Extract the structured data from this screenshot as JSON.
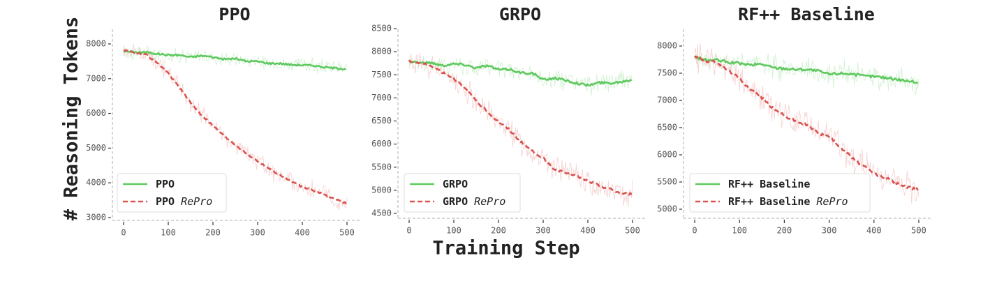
{
  "figure": {
    "ylabel": "# Reasoning Tokens",
    "xlabel": "Training Step",
    "colors": {
      "baseline": "#5ec95e",
      "repro": "#d9534f",
      "baseline_raw": "#c8efc8",
      "repro_raw": "#f4c9c8",
      "axis": "#c8c8c8",
      "text": "#222222",
      "tick_text": "#555555"
    }
  },
  "chart_data": [
    {
      "type": "line",
      "title": "PPO",
      "xlabel": "Training Step",
      "ylabel": "# Reasoning Tokens",
      "xlim": [
        -15,
        530
      ],
      "ylim": [
        2950,
        8400
      ],
      "xticks": [
        0,
        100,
        200,
        300,
        400,
        500
      ],
      "xtick_labels": [
        "0",
        "100",
        "200",
        "300",
        "400",
        "500"
      ],
      "yticks": [
        3000,
        4000,
        5000,
        6000,
        7000,
        8000
      ],
      "ytick_labels": [
        "3000",
        "4000",
        "5000",
        "6000",
        "7000",
        "8000"
      ],
      "grid": false,
      "legend_position": "lower left",
      "x": [
        0,
        25,
        50,
        75,
        100,
        125,
        150,
        175,
        200,
        225,
        250,
        275,
        300,
        325,
        350,
        375,
        400,
        425,
        450,
        475,
        500
      ],
      "series": [
        {
          "name": "PPO",
          "label_main": "PPO",
          "label_italic": "",
          "style": "solid",
          "values": [
            7800,
            7760,
            7760,
            7720,
            7680,
            7680,
            7620,
            7660,
            7620,
            7560,
            7580,
            7500,
            7500,
            7440,
            7440,
            7400,
            7390,
            7380,
            7330,
            7300,
            7280
          ]
        },
        {
          "name": "PPO RePro",
          "label_main": "PPO",
          "label_italic": "RePro",
          "style": "dashed",
          "values": [
            7820,
            7760,
            7700,
            7450,
            7150,
            6750,
            6300,
            5950,
            5650,
            5350,
            5100,
            4850,
            4620,
            4420,
            4220,
            4050,
            3880,
            3780,
            3650,
            3530,
            3400
          ]
        }
      ]
    },
    {
      "type": "line",
      "title": "GRPO",
      "xlabel": "Training Step",
      "ylabel": "# Reasoning Tokens",
      "xlim": [
        -15,
        530
      ],
      "ylim": [
        4380,
        8500
      ],
      "xticks": [
        0,
        100,
        200,
        300,
        400,
        500
      ],
      "xtick_labels": [
        "0",
        "100",
        "200",
        "300",
        "400",
        "500"
      ],
      "yticks": [
        4500,
        5000,
        5500,
        6000,
        6500,
        7000,
        7500,
        8000,
        8500
      ],
      "ytick_labels": [
        "4500",
        "5000",
        "5500",
        "6000",
        "6500",
        "7000",
        "7500",
        "8000",
        "8500"
      ],
      "grid": false,
      "legend_position": "lower left",
      "x": [
        0,
        25,
        50,
        75,
        100,
        125,
        150,
        175,
        200,
        225,
        250,
        275,
        300,
        325,
        350,
        375,
        400,
        425,
        450,
        475,
        500
      ],
      "series": [
        {
          "name": "GRPO",
          "label_main": "GRPO",
          "label_italic": "",
          "style": "solid",
          "values": [
            7800,
            7760,
            7760,
            7700,
            7740,
            7720,
            7650,
            7700,
            7610,
            7620,
            7540,
            7540,
            7390,
            7430,
            7380,
            7320,
            7270,
            7330,
            7320,
            7350,
            7400
          ]
        },
        {
          "name": "GRPO RePro",
          "label_main": "GRPO",
          "label_italic": "RePro",
          "style": "dashed",
          "values": [
            7800,
            7750,
            7700,
            7550,
            7420,
            7200,
            6950,
            6700,
            6480,
            6300,
            6050,
            5850,
            5700,
            5450,
            5400,
            5300,
            5200,
            5100,
            5020,
            4930,
            4920
          ]
        }
      ]
    },
    {
      "type": "line",
      "title": "RF++ Baseline",
      "xlabel": "Training Step",
      "ylabel": "# Reasoning Tokens",
      "xlim": [
        -15,
        530
      ],
      "ylim": [
        4820,
        8220
      ],
      "xticks": [
        0,
        100,
        200,
        300,
        400,
        500
      ],
      "xtick_labels": [
        "0",
        "100",
        "200",
        "300",
        "400",
        "500"
      ],
      "yticks": [
        5000,
        5500,
        6000,
        6500,
        7000,
        7500,
        8000
      ],
      "ytick_labels": [
        "5000",
        "5500",
        "6000",
        "6500",
        "7000",
        "7500",
        "8000"
      ],
      "grid": false,
      "legend_position": "lower left",
      "x": [
        0,
        25,
        50,
        75,
        100,
        125,
        150,
        175,
        200,
        225,
        250,
        275,
        300,
        325,
        350,
        375,
        400,
        425,
        450,
        475,
        500
      ],
      "series": [
        {
          "name": "RF++ Baseline",
          "label_main": "RF++ Baseline",
          "label_italic": "",
          "style": "solid",
          "values": [
            7800,
            7740,
            7740,
            7700,
            7680,
            7650,
            7670,
            7600,
            7590,
            7570,
            7570,
            7540,
            7480,
            7500,
            7490,
            7450,
            7440,
            7420,
            7390,
            7360,
            7330
          ]
        },
        {
          "name": "RF++ Baseline RePro",
          "label_main": "RF++ Baseline",
          "label_italic": "RePro",
          "style": "dashed",
          "values": [
            7820,
            7720,
            7700,
            7550,
            7400,
            7200,
            7050,
            6850,
            6720,
            6620,
            6550,
            6400,
            6330,
            6150,
            5950,
            5800,
            5650,
            5580,
            5480,
            5400,
            5360
          ]
        }
      ]
    }
  ]
}
